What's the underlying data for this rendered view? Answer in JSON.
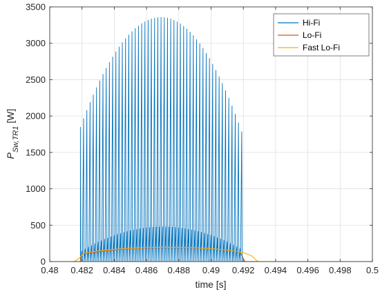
{
  "chart_data": {
    "type": "line",
    "title": "",
    "xlabel": "time [s]",
    "ylabel_main": "P",
    "ylabel_sub": "Sw,TR1",
    "ylabel_unit": " [W]",
    "xlim": [
      0.48,
      0.5
    ],
    "ylim": [
      0,
      3500
    ],
    "x_ticks": [
      0.48,
      0.482,
      0.484,
      0.486,
      0.488,
      0.49,
      0.492,
      0.494,
      0.496,
      0.498,
      0.5
    ],
    "x_tick_labels": [
      "0.48",
      "0.482",
      "0.484",
      "0.486",
      "0.488",
      "0.49",
      "0.492",
      "0.494",
      "0.496",
      "0.498",
      "0.5"
    ],
    "y_ticks": [
      0,
      500,
      1000,
      1500,
      2000,
      2500,
      3000,
      3500
    ],
    "y_tick_labels": [
      "0",
      "500",
      "1000",
      "1500",
      "2000",
      "2500",
      "3000",
      "3500"
    ],
    "grid": true,
    "legend_position": "top-right",
    "series": [
      {
        "name": "Hi-Fi",
        "color": "#0072BD",
        "style": "switching-pulses",
        "pulse_start": 0.4819,
        "pulse_end": 0.4918,
        "pulse_period": 0.0002,
        "major_peak": 3360,
        "major_start": 1850,
        "major_end": 1850,
        "peak_time": 0.4869,
        "minor_peak": 480,
        "minor_start": 150,
        "minor_end": 170
      },
      {
        "name": "Lo-Fi",
        "color": "#D95319",
        "x": [
          0.48,
          0.4812,
          0.4819,
          0.482,
          0.483,
          0.484,
          0.485,
          0.486,
          0.487,
          0.488,
          0.489,
          0.49,
          0.491,
          0.4918,
          0.4921,
          0.493,
          0.5
        ],
        "values": [
          0,
          0,
          0,
          105,
          135,
          160,
          178,
          188,
          193,
          193,
          188,
          176,
          155,
          128,
          0,
          0,
          0
        ]
      },
      {
        "name": "Fast Lo-Fi",
        "color": "#EDB120",
        "x": [
          0.48,
          0.4815,
          0.4818,
          0.4821,
          0.483,
          0.484,
          0.485,
          0.486,
          0.487,
          0.488,
          0.489,
          0.49,
          0.491,
          0.492,
          0.4925,
          0.4929,
          0.5
        ],
        "values": [
          0,
          0,
          40,
          115,
          145,
          168,
          183,
          193,
          196,
          195,
          190,
          178,
          158,
          125,
          80,
          0,
          0
        ]
      }
    ]
  }
}
